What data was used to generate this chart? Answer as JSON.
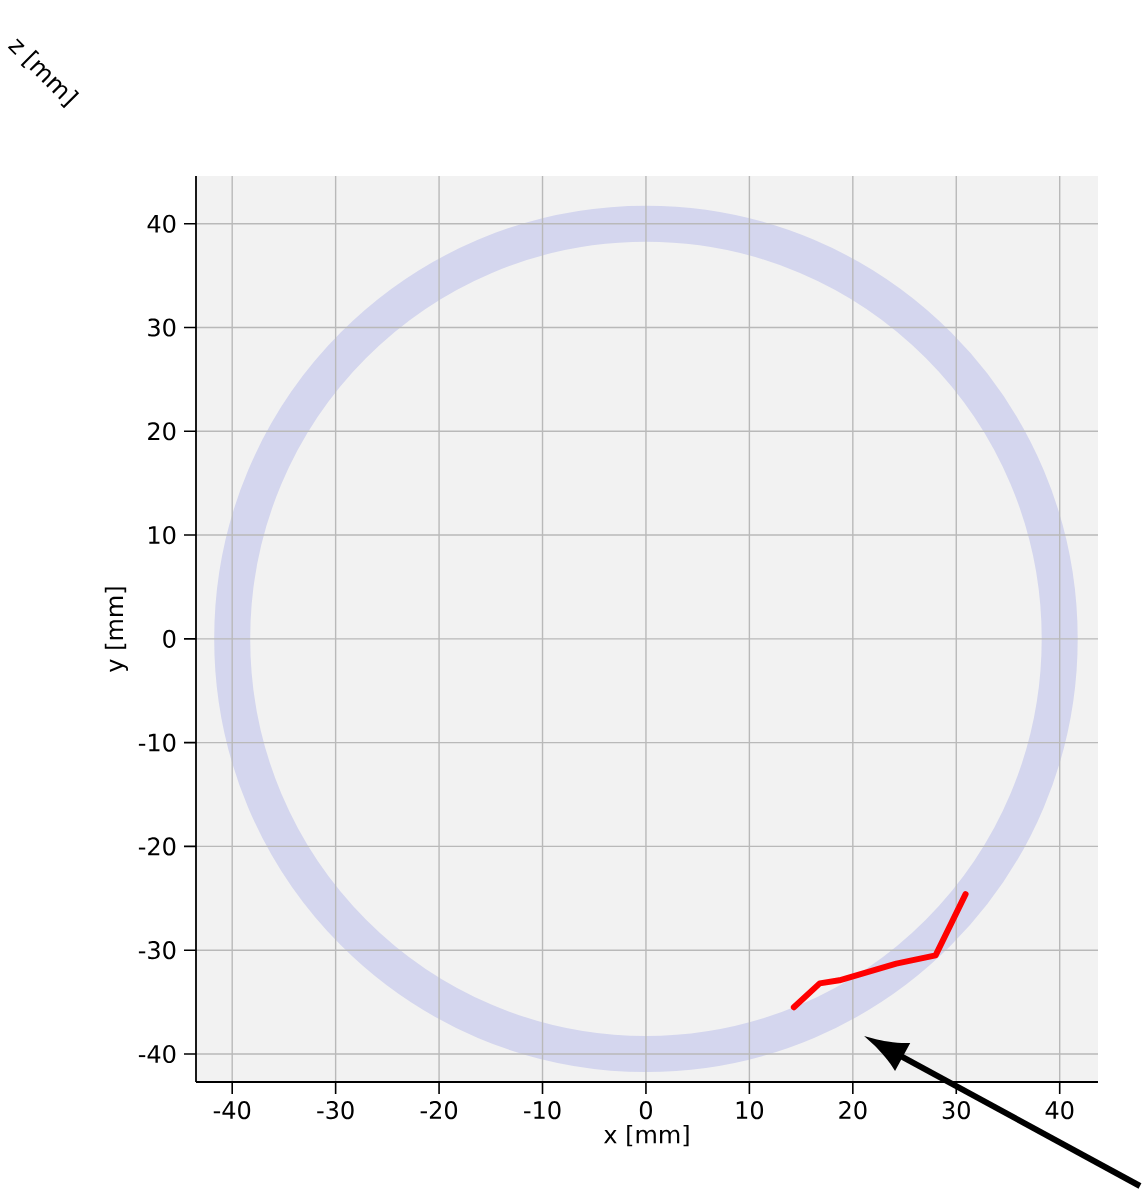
{
  "chart_data": {
    "type": "line",
    "xlabel": "x [mm]",
    "ylabel": "y [mm]",
    "annotations": [
      "z [mm]"
    ],
    "series": [
      {
        "color": "#ff0000",
        "x": [
          14.3,
          16.8,
          18.7,
          24.2,
          28.0,
          30.9
        ],
        "values": [
          -35.5,
          -33.2,
          -32.9,
          -31.3,
          -30.5,
          -24.6
        ]
      }
    ],
    "xlim": [
      -43.5,
      43.7
    ],
    "ylim": [
      -42.7,
      44.6
    ],
    "xticks": [
      -40,
      -30,
      -20,
      -10,
      0,
      10,
      20,
      30,
      40
    ],
    "yticks": [
      -40,
      -30,
      -20,
      -10,
      0,
      10,
      20,
      30,
      40
    ],
    "grid": true
  }
}
